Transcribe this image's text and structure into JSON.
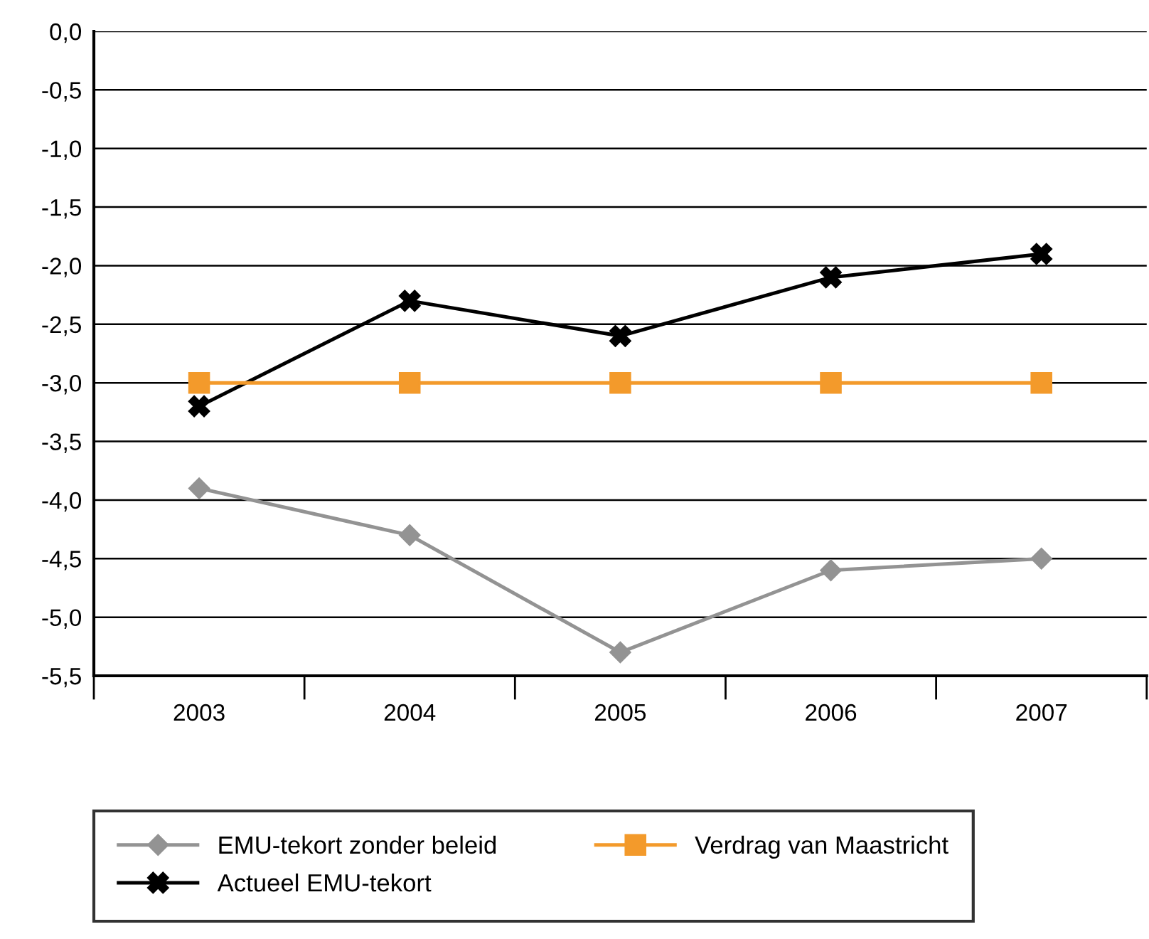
{
  "chart_data": {
    "type": "line",
    "categories": [
      "2003",
      "2004",
      "2005",
      "2006",
      "2007"
    ],
    "series": [
      {
        "name": "EMU-tekort zonder beleid",
        "color": "#939393",
        "marker": "diamond",
        "values": [
          -3.9,
          -4.3,
          -5.3,
          -4.6,
          -4.5
        ]
      },
      {
        "name": "Actueel EMU-tekort",
        "color": "#000000",
        "marker": "cross",
        "values": [
          -3.2,
          -2.3,
          -2.6,
          -2.1,
          -1.9
        ]
      },
      {
        "name": "Verdrag van Maastricht",
        "color": "#f39a2b",
        "marker": "square",
        "values": [
          -3.0,
          -3.0,
          -3.0,
          -3.0,
          -3.0
        ]
      }
    ],
    "ylim": [
      -5.5,
      0
    ],
    "yticks": [
      {
        "value": 0,
        "label": "0,0"
      },
      {
        "value": -0.5,
        "label": "-0,5"
      },
      {
        "value": -1,
        "label": "-1,0"
      },
      {
        "value": -1.5,
        "label": "-1,5"
      },
      {
        "value": -2,
        "label": "-2,0"
      },
      {
        "value": -2.5,
        "label": "-2,5"
      },
      {
        "value": -3,
        "label": "-3,0"
      },
      {
        "value": -3.5,
        "label": "-3,5"
      },
      {
        "value": -4,
        "label": "-4,0"
      },
      {
        "value": -4.5,
        "label": "-4,5"
      },
      {
        "value": -5,
        "label": "-5,0"
      },
      {
        "value": -5.5,
        "label": "-5,5"
      }
    ],
    "grid": "y",
    "legend": "bottom",
    "line_style": "solid"
  }
}
